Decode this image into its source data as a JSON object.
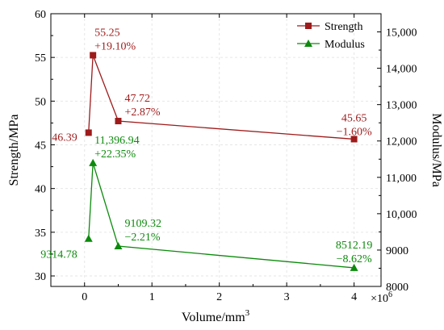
{
  "chart_data": {
    "type": "line",
    "xlabel": "Volume/mm",
    "xlabel_sup": "3",
    "x_multiplier": "×10",
    "x_multiplier_sup": "6",
    "ylabel_left": "Strength/MPa",
    "ylabel_right": "Modulus/MPa",
    "xlim": [
      -0.5,
      4.4
    ],
    "ylim_left": [
      28.8,
      60
    ],
    "ylim_right": [
      8000,
      15500
    ],
    "x_ticks": [
      0,
      1,
      2,
      3,
      4
    ],
    "y_left_ticks": [
      30,
      35,
      40,
      45,
      50,
      55,
      60
    ],
    "y_right_ticks": [
      8000,
      9000,
      10000,
      11000,
      12000,
      13000,
      14000,
      15000
    ],
    "y_right_tick_labels": [
      "8000",
      "9000",
      "10,000",
      "11,000",
      "12,000",
      "13,000",
      "14,000",
      "15,000"
    ],
    "legend_position": "top-right",
    "grid": true,
    "series": [
      {
        "name": "Strength",
        "axis": "left",
        "color": "#9e1b1b",
        "marker": "square",
        "x": [
          0.06,
          0.125,
          0.5,
          4.0
        ],
        "y": [
          46.39,
          55.25,
          47.72,
          45.65
        ],
        "labels": [
          [
            "46.39"
          ],
          [
            "55.25",
            "+19.10%"
          ],
          [
            "47.72",
            "+2.87%"
          ],
          [
            "45.65",
            "−1.60%"
          ]
        ]
      },
      {
        "name": "Modulus",
        "axis": "right",
        "color": "#0c8a0c",
        "marker": "triangle",
        "x": [
          0.06,
          0.125,
          0.5,
          4.0
        ],
        "y": [
          9314.78,
          11396.94,
          9109.32,
          8512.19
        ],
        "labels": [
          [
            "9314.78"
          ],
          [
            "11,396.94",
            "+22.35%"
          ],
          [
            "9109.32",
            "−2.21%"
          ],
          [
            "8512.19",
            "−8.62%"
          ]
        ]
      }
    ]
  }
}
